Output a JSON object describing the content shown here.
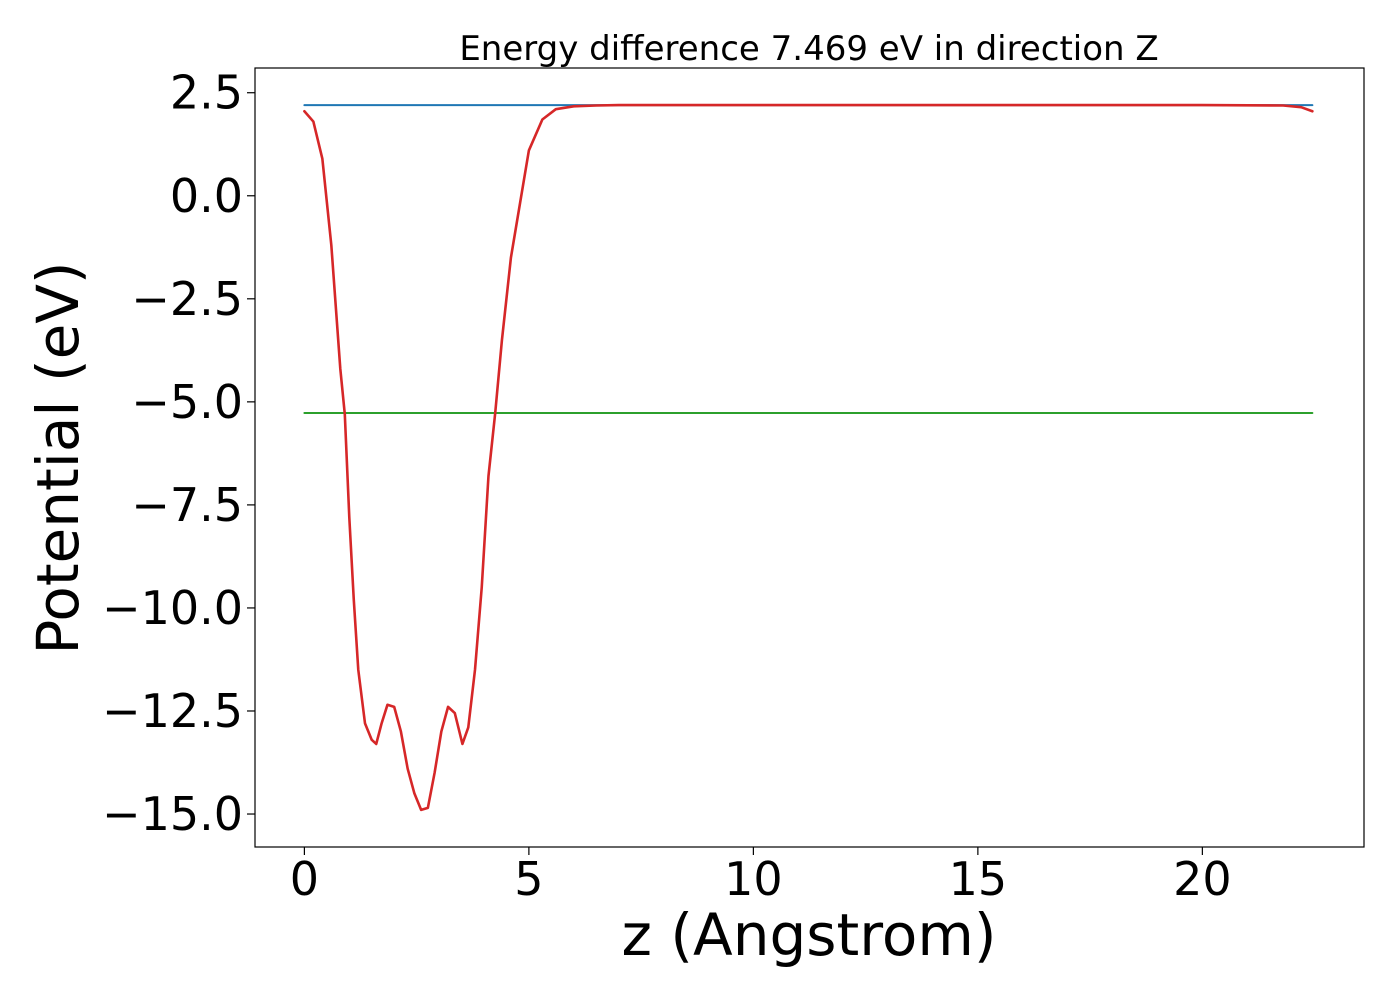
{
  "chart_data": {
    "type": "line",
    "title": "Energy difference 7.469 eV in direction Z",
    "xlabel": "z (Angstrom)",
    "ylabel": "Potential (eV)",
    "xlim": [
      -1.1,
      23.6
    ],
    "ylim": [
      -15.8,
      3.1
    ],
    "grid": false,
    "xticks": [
      0,
      5,
      10,
      15,
      20
    ],
    "yticks": [
      2.5,
      0.0,
      -2.5,
      -5.0,
      -7.5,
      -10.0,
      -12.5,
      -15.0
    ],
    "xtick_labels": [
      "0",
      "5",
      "10",
      "15",
      "20"
    ],
    "ytick_labels": [
      "2.5",
      "0.0",
      "−2.5",
      "−5.0",
      "−7.5",
      "−10.0",
      "−12.5",
      "−15.0"
    ],
    "series": [
      {
        "color": "#1f77b4",
        "kind": "hline",
        "x": [
          0,
          22.45
        ],
        "y": [
          2.2,
          2.2
        ]
      },
      {
        "color": "#2ca02c",
        "kind": "hline",
        "x": [
          0,
          22.45
        ],
        "y": [
          -5.27,
          -5.27
        ]
      },
      {
        "color": "#d62728",
        "kind": "line",
        "x": [
          0,
          0.2,
          0.4,
          0.6,
          0.8,
          0.9,
          1.0,
          1.1,
          1.2,
          1.35,
          1.5,
          1.6,
          1.72,
          1.85,
          2.0,
          2.15,
          2.3,
          2.45,
          2.6,
          2.75,
          2.9,
          3.05,
          3.2,
          3.35,
          3.52,
          3.65,
          3.8,
          3.95,
          4.1,
          4.25,
          4.4,
          4.6,
          4.8,
          5.0,
          5.3,
          5.6,
          6.0,
          6.5,
          7.0,
          10.0,
          15.0,
          20.0,
          21.8,
          22.2,
          22.45
        ],
        "y": [
          2.05,
          1.8,
          0.9,
          -1.2,
          -4.2,
          -5.3,
          -7.8,
          -9.8,
          -11.5,
          -12.8,
          -13.2,
          -13.3,
          -12.8,
          -12.35,
          -12.4,
          -13.0,
          -13.9,
          -14.5,
          -14.9,
          -14.85,
          -14.0,
          -13.0,
          -12.4,
          -12.55,
          -13.3,
          -12.9,
          -11.5,
          -9.5,
          -6.8,
          -5.27,
          -3.5,
          -1.5,
          -0.2,
          1.1,
          1.85,
          2.1,
          2.17,
          2.19,
          2.2,
          2.2,
          2.2,
          2.2,
          2.19,
          2.15,
          2.05
        ]
      }
    ]
  }
}
